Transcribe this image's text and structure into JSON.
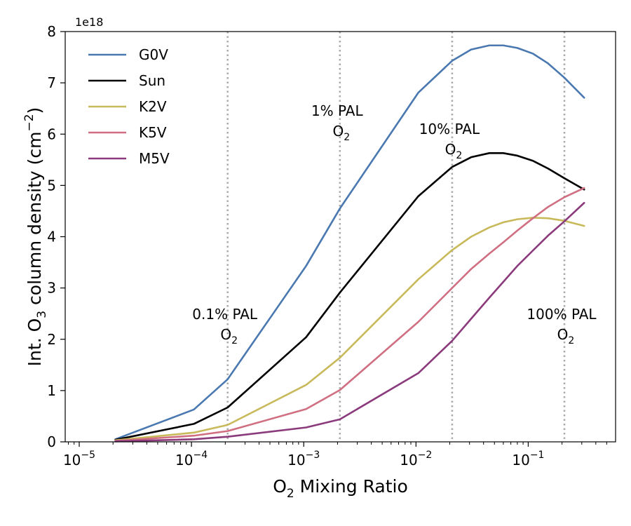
{
  "chart_data": {
    "type": "line",
    "x_scale": "log",
    "xlim": [
      7.5e-06,
      0.6
    ],
    "ylim": [
      0,
      8
    ],
    "x_ticks": [
      {
        "value": 1e-05,
        "base": "10",
        "exp": "−5"
      },
      {
        "value": 0.0001,
        "base": "10",
        "exp": "−4"
      },
      {
        "value": 0.001,
        "base": "10",
        "exp": "−3"
      },
      {
        "value": 0.01,
        "base": "10",
        "exp": "−2"
      },
      {
        "value": 0.1,
        "base": "10",
        "exp": "−1"
      }
    ],
    "y_ticks": [
      0,
      1,
      2,
      3,
      4,
      5,
      6,
      7,
      8
    ],
    "y_offset_label": "1e18",
    "xlabel": {
      "pre": "O",
      "sub": "2",
      "post": " Mixing Ratio"
    },
    "ylabel": {
      "pre": "Int. O",
      "sub": "3",
      "mid": " column density (cm",
      "sup": "−2",
      "post": ")"
    },
    "grid": false,
    "legend_position": "upper-left",
    "reference_lines": [
      {
        "x": 0.00021,
        "label_line1": "0.1% PAL",
        "label_line2_pre": "O",
        "label_line2_sub": "2"
      },
      {
        "x": 0.0021,
        "label_line1": "1% PAL",
        "label_line2_pre": "O",
        "label_line2_sub": "2"
      },
      {
        "x": 0.021,
        "label_line1": "10% PAL",
        "label_line2_pre": "O",
        "label_line2_sub": "2"
      },
      {
        "x": 0.21,
        "label_line1": "100% PAL",
        "label_line2_pre": "O",
        "label_line2_sub": "2"
      }
    ],
    "series": [
      {
        "name": "G0V",
        "color": "#4a78b0",
        "points": [
          [
            2.1e-05,
            0.05
          ],
          [
            0.000105,
            0.63
          ],
          [
            0.00021,
            1.22
          ],
          [
            0.00105,
            3.43
          ],
          [
            0.0021,
            4.55
          ],
          [
            0.0105,
            6.81
          ],
          [
            0.021,
            7.43
          ],
          [
            0.031,
            7.65
          ],
          [
            0.045,
            7.73
          ],
          [
            0.06,
            7.73
          ],
          [
            0.08,
            7.68
          ],
          [
            0.11,
            7.57
          ],
          [
            0.15,
            7.38
          ],
          [
            0.21,
            7.1
          ],
          [
            0.315,
            6.71
          ]
        ]
      },
      {
        "name": "Sun",
        "color": "#000000",
        "points": [
          [
            2.1e-05,
            0.04
          ],
          [
            0.000105,
            0.35
          ],
          [
            0.00021,
            0.67
          ],
          [
            0.00105,
            2.04
          ],
          [
            0.0021,
            2.91
          ],
          [
            0.0105,
            4.79
          ],
          [
            0.021,
            5.36
          ],
          [
            0.031,
            5.55
          ],
          [
            0.045,
            5.63
          ],
          [
            0.06,
            5.63
          ],
          [
            0.08,
            5.58
          ],
          [
            0.11,
            5.48
          ],
          [
            0.15,
            5.33
          ],
          [
            0.21,
            5.14
          ],
          [
            0.315,
            4.92
          ]
        ]
      },
      {
        "name": "K2V",
        "color": "#c8b95a",
        "points": [
          [
            2.1e-05,
            0.03
          ],
          [
            0.000105,
            0.18
          ],
          [
            0.00021,
            0.33
          ],
          [
            0.00105,
            1.11
          ],
          [
            0.0021,
            1.64
          ],
          [
            0.0105,
            3.17
          ],
          [
            0.021,
            3.74
          ],
          [
            0.031,
            4.0
          ],
          [
            0.045,
            4.18
          ],
          [
            0.06,
            4.28
          ],
          [
            0.08,
            4.34
          ],
          [
            0.11,
            4.37
          ],
          [
            0.15,
            4.36
          ],
          [
            0.21,
            4.31
          ],
          [
            0.315,
            4.21
          ]
        ]
      },
      {
        "name": "K5V",
        "color": "#d06f82",
        "points": [
          [
            2.1e-05,
            0.02
          ],
          [
            0.000105,
            0.12
          ],
          [
            0.00021,
            0.21
          ],
          [
            0.00105,
            0.64
          ],
          [
            0.0021,
            1.01
          ],
          [
            0.0105,
            2.34
          ],
          [
            0.021,
            3.0
          ],
          [
            0.031,
            3.37
          ],
          [
            0.045,
            3.67
          ],
          [
            0.06,
            3.89
          ],
          [
            0.08,
            4.12
          ],
          [
            0.11,
            4.36
          ],
          [
            0.15,
            4.58
          ],
          [
            0.21,
            4.77
          ],
          [
            0.315,
            4.95
          ]
        ]
      },
      {
        "name": "M5V",
        "color": "#8b3a7c",
        "points": [
          [
            2.1e-05,
            0.01
          ],
          [
            0.000105,
            0.05
          ],
          [
            0.00021,
            0.1
          ],
          [
            0.00105,
            0.28
          ],
          [
            0.0021,
            0.44
          ],
          [
            0.0105,
            1.34
          ],
          [
            0.021,
            1.97
          ],
          [
            0.031,
            2.4
          ],
          [
            0.045,
            2.81
          ],
          [
            0.06,
            3.12
          ],
          [
            0.08,
            3.43
          ],
          [
            0.11,
            3.73
          ],
          [
            0.15,
            4.02
          ],
          [
            0.21,
            4.3
          ],
          [
            0.315,
            4.66
          ]
        ]
      }
    ]
  }
}
